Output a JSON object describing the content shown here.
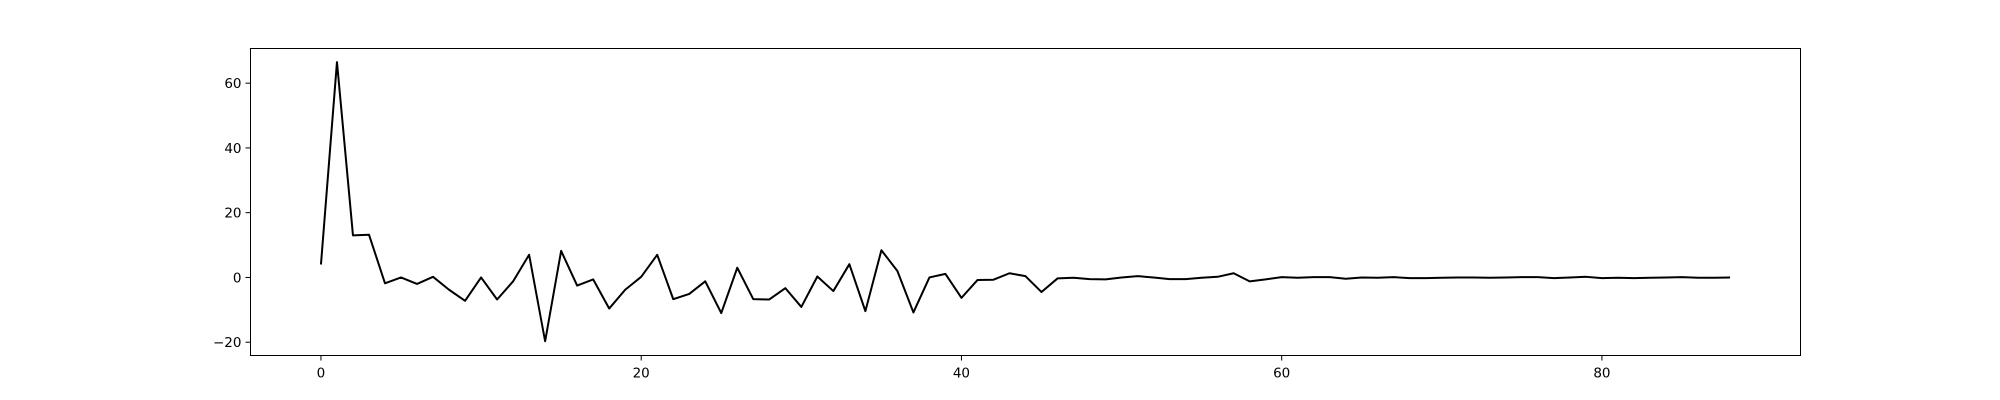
{
  "chart_data": {
    "type": "line",
    "title": "",
    "xlabel": "",
    "ylabel": "",
    "xlim": [
      -4.4,
      92.4
    ],
    "ylim": [
      -24.1,
      70.7
    ],
    "xticks": [
      0,
      20,
      40,
      60,
      80
    ],
    "yticks": [
      -20,
      0,
      20,
      40,
      60
    ],
    "xtick_labels": [
      "0",
      "20",
      "40",
      "60",
      "80"
    ],
    "ytick_labels": [
      "−20",
      "0",
      "20",
      "40",
      "60"
    ],
    "grid": false,
    "legend": "none",
    "line_color": "#000000",
    "series": [
      {
        "x": [
          0,
          1,
          2,
          3,
          4,
          5,
          6,
          7,
          8,
          9,
          10,
          11,
          12,
          13,
          14,
          15,
          16,
          17,
          18,
          19,
          20,
          21,
          22,
          23,
          24,
          25,
          26,
          27,
          28,
          29,
          30,
          31,
          32,
          33,
          34,
          35,
          36,
          37,
          38,
          39,
          40,
          41,
          42,
          43,
          44,
          45,
          46,
          47,
          48,
          49,
          50,
          51,
          52,
          53,
          54,
          55,
          56,
          57,
          58,
          59,
          60,
          61,
          62,
          63,
          64,
          65,
          66,
          67,
          68,
          69,
          70,
          71,
          72,
          73,
          74,
          75,
          76,
          77,
          78,
          79,
          80,
          81,
          82,
          83,
          84,
          85,
          86,
          87,
          88
        ],
        "values": [
          4,
          66.5,
          13,
          13.2,
          -1.8,
          0,
          -2,
          0.2,
          -3.8,
          -7.2,
          0,
          -6.8,
          -1.2,
          7,
          -19.7,
          8.2,
          -2.5,
          -0.6,
          -9.6,
          -3.8,
          0.2,
          7,
          -6.7,
          -5.1,
          -1.2,
          -11,
          3,
          -6.7,
          -6.8,
          -3.3,
          -9.1,
          0.3,
          -4.2,
          4.1,
          -10.4,
          8.4,
          2,
          -10.8,
          0,
          1.1,
          -6.3,
          -0.8,
          -0.7,
          1.3,
          0.4,
          -4.5,
          -0.3,
          -0.1,
          -0.5,
          -0.6,
          0,
          0.4,
          0,
          -0.5,
          -0.5,
          -0.1,
          0.2,
          1.3,
          -1.2,
          -0.6,
          0.1,
          -0.1,
          0.1,
          0.1,
          -0.4,
          0,
          -0.1,
          0.1,
          -0.2,
          -0.2,
          -0.1,
          0,
          0,
          -0.1,
          0,
          0.1,
          0.1,
          -0.2,
          0,
          0.2,
          -0.2,
          -0.1,
          -0.2,
          -0.1,
          0,
          0.1,
          -0.1,
          -0.1,
          0
        ]
      }
    ]
  }
}
